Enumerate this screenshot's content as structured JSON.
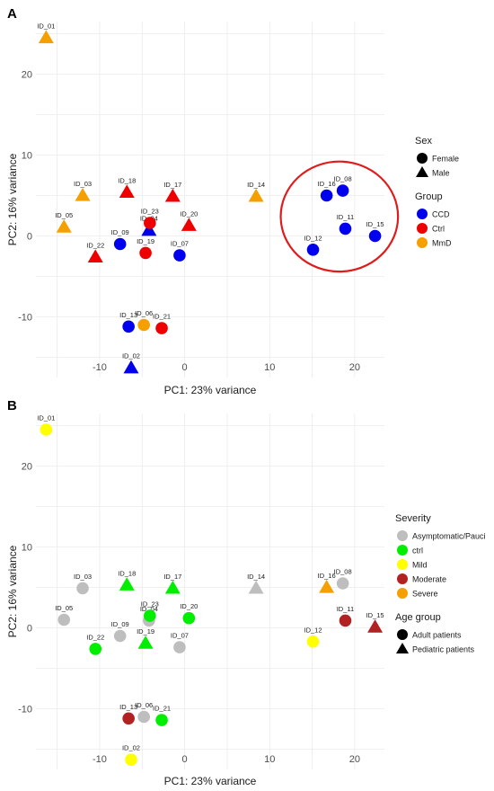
{
  "chart_data": [
    {
      "panel": "A",
      "type": "scatter",
      "title": "",
      "xlabel": "PC1: 23% variance",
      "ylabel": "PC2: 16% variance",
      "xlim": [
        -17.5,
        23.5
      ],
      "ylim": [
        -17.5,
        26.5
      ],
      "x_ticks": [
        -10,
        0,
        10,
        20
      ],
      "y_ticks": [
        -10,
        0,
        10,
        20
      ],
      "grid": true,
      "legend_position": "right",
      "colors": {
        "CCD": "#0000ee",
        "Ctrl": "#ee0000",
        "MmD": "#f5a000"
      },
      "legend": [
        {
          "title": "Sex",
          "kind": "shape",
          "items": [
            {
              "label": "Female",
              "shape": "circle"
            },
            {
              "label": "Male",
              "shape": "triangle"
            }
          ]
        },
        {
          "title": "Group",
          "kind": "color",
          "items": [
            {
              "label": "CCD",
              "color": "#0000ee"
            },
            {
              "label": "Ctrl",
              "color": "#ee0000"
            },
            {
              "label": "MmD",
              "color": "#f5a000"
            }
          ]
        }
      ],
      "annotation": {
        "type": "circle",
        "color": "#e01b1b",
        "center": [
          18.2,
          2.4
        ],
        "radius_x": 6.9,
        "radius_y": 6.8
      },
      "points": [
        {
          "id": "ID_01",
          "x": -16.3,
          "y": 24.5,
          "shape": "triangle",
          "color": "MmD"
        },
        {
          "id": "ID_02",
          "x": -6.3,
          "y": -16.3,
          "shape": "triangle",
          "color": "CCD"
        },
        {
          "id": "ID_03",
          "x": -12.0,
          "y": 5.0,
          "shape": "triangle",
          "color": "MmD"
        },
        {
          "id": "ID_04",
          "x": -4.2,
          "y": 0.7,
          "shape": "triangle",
          "color": "CCD"
        },
        {
          "id": "ID_05",
          "x": -14.2,
          "y": 1.1,
          "shape": "triangle",
          "color": "MmD"
        },
        {
          "id": "ID_06",
          "x": -4.8,
          "y": -11.0,
          "shape": "circle",
          "color": "MmD"
        },
        {
          "id": "ID_07",
          "x": -0.6,
          "y": -2.4,
          "shape": "circle",
          "color": "CCD"
        },
        {
          "id": "ID_08",
          "x": 18.6,
          "y": 5.6,
          "shape": "circle",
          "color": "CCD"
        },
        {
          "id": "ID_09",
          "x": -7.6,
          "y": -1.0,
          "shape": "circle",
          "color": "CCD"
        },
        {
          "id": "ID_11",
          "x": 18.9,
          "y": 0.9,
          "shape": "circle",
          "color": "CCD"
        },
        {
          "id": "ID_12",
          "x": 15.1,
          "y": -1.7,
          "shape": "circle",
          "color": "CCD"
        },
        {
          "id": "ID_13",
          "x": -6.6,
          "y": -11.2,
          "shape": "circle",
          "color": "CCD"
        },
        {
          "id": "ID_14",
          "x": 8.4,
          "y": 4.9,
          "shape": "triangle",
          "color": "MmD"
        },
        {
          "id": "ID_15",
          "x": 22.4,
          "y": 0.0,
          "shape": "circle",
          "color": "CCD"
        },
        {
          "id": "ID_16",
          "x": 16.7,
          "y": 5.0,
          "shape": "circle",
          "color": "CCD"
        },
        {
          "id": "ID_17",
          "x": -1.4,
          "y": 4.9,
          "shape": "triangle",
          "color": "Ctrl"
        },
        {
          "id": "ID_18",
          "x": -6.8,
          "y": 5.4,
          "shape": "triangle",
          "color": "Ctrl"
        },
        {
          "id": "ID_19",
          "x": -4.6,
          "y": -2.1,
          "shape": "circle",
          "color": "Ctrl"
        },
        {
          "id": "ID_20",
          "x": 0.5,
          "y": 1.3,
          "shape": "triangle",
          "color": "Ctrl"
        },
        {
          "id": "ID_21",
          "x": -2.7,
          "y": -11.4,
          "shape": "circle",
          "color": "Ctrl"
        },
        {
          "id": "ID_22",
          "x": -10.5,
          "y": -2.6,
          "shape": "triangle",
          "color": "Ctrl"
        },
        {
          "id": "ID_23",
          "x": -4.1,
          "y": 1.6,
          "shape": "circle",
          "color": "Ctrl"
        }
      ]
    },
    {
      "panel": "B",
      "type": "scatter",
      "title": "",
      "xlabel": "PC1: 23% variance",
      "ylabel": "PC2: 16% variance",
      "xlim": [
        -17.5,
        23.5
      ],
      "ylim": [
        -17.5,
        26.5
      ],
      "x_ticks": [
        -10,
        0,
        10,
        20
      ],
      "y_ticks": [
        -10,
        0,
        10,
        20
      ],
      "grid": true,
      "legend_position": "right",
      "colors": {
        "Asymptomatic/Pauci": "#bebebe",
        "ctrl": "#00ee00",
        "Mild": "#ffff00",
        "Moderate": "#b22222",
        "Severe": "#f5a000"
      },
      "legend": [
        {
          "title": "Severity",
          "kind": "color",
          "items": [
            {
              "label": "Asymptomatic/Pauci",
              "color": "#bebebe"
            },
            {
              "label": "ctrl",
              "color": "#00ee00"
            },
            {
              "label": "Mild",
              "color": "#ffff00"
            },
            {
              "label": "Moderate",
              "color": "#b22222"
            },
            {
              "label": "Severe",
              "color": "#f5a000"
            }
          ]
        },
        {
          "title": "Age group",
          "kind": "shape",
          "items": [
            {
              "label": "Adult patients",
              "shape": "circle"
            },
            {
              "label": "Pediatric patients",
              "shape": "triangle"
            }
          ]
        }
      ],
      "points": [
        {
          "id": "ID_01",
          "x": -16.3,
          "y": 24.5,
          "shape": "circle",
          "color": "Mild"
        },
        {
          "id": "ID_02",
          "x": -6.3,
          "y": -16.3,
          "shape": "circle",
          "color": "Mild"
        },
        {
          "id": "ID_03",
          "x": -12.0,
          "y": 4.9,
          "shape": "circle",
          "color": "Asymptomatic/Pauci"
        },
        {
          "id": "ID_04",
          "x": -4.2,
          "y": 0.9,
          "shape": "circle",
          "color": "Asymptomatic/Pauci"
        },
        {
          "id": "ID_05",
          "x": -14.2,
          "y": 1.0,
          "shape": "circle",
          "color": "Asymptomatic/Pauci"
        },
        {
          "id": "ID_06",
          "x": -4.8,
          "y": -11.0,
          "shape": "circle",
          "color": "Asymptomatic/Pauci"
        },
        {
          "id": "ID_07",
          "x": -0.6,
          "y": -2.4,
          "shape": "circle",
          "color": "Asymptomatic/Pauci"
        },
        {
          "id": "ID_08",
          "x": 18.6,
          "y": 5.5,
          "shape": "circle",
          "color": "Asymptomatic/Pauci"
        },
        {
          "id": "ID_09",
          "x": -7.6,
          "y": -1.0,
          "shape": "circle",
          "color": "Asymptomatic/Pauci"
        },
        {
          "id": "ID_11",
          "x": 18.9,
          "y": 0.9,
          "shape": "circle",
          "color": "Moderate"
        },
        {
          "id": "ID_12",
          "x": 15.1,
          "y": -1.7,
          "shape": "circle",
          "color": "Mild"
        },
        {
          "id": "ID_13",
          "x": -6.6,
          "y": -11.2,
          "shape": "circle",
          "color": "Moderate"
        },
        {
          "id": "ID_14",
          "x": 8.4,
          "y": 4.9,
          "shape": "triangle",
          "color": "Asymptomatic/Pauci"
        },
        {
          "id": "ID_15",
          "x": 22.4,
          "y": 0.1,
          "shape": "triangle",
          "color": "Moderate"
        },
        {
          "id": "ID_16",
          "x": 16.7,
          "y": 5.0,
          "shape": "triangle",
          "color": "Severe"
        },
        {
          "id": "ID_17",
          "x": -1.4,
          "y": 4.9,
          "shape": "triangle",
          "color": "ctrl"
        },
        {
          "id": "ID_18",
          "x": -6.8,
          "y": 5.3,
          "shape": "triangle",
          "color": "ctrl"
        },
        {
          "id": "ID_19",
          "x": -4.6,
          "y": -1.9,
          "shape": "triangle",
          "color": "ctrl"
        },
        {
          "id": "ID_20",
          "x": 0.5,
          "y": 1.2,
          "shape": "circle",
          "color": "ctrl"
        },
        {
          "id": "ID_21",
          "x": -2.7,
          "y": -11.4,
          "shape": "circle",
          "color": "ctrl"
        },
        {
          "id": "ID_22",
          "x": -10.5,
          "y": -2.6,
          "shape": "circle",
          "color": "ctrl"
        },
        {
          "id": "ID_23",
          "x": -4.1,
          "y": 1.5,
          "shape": "circle",
          "color": "ctrl"
        }
      ]
    }
  ]
}
